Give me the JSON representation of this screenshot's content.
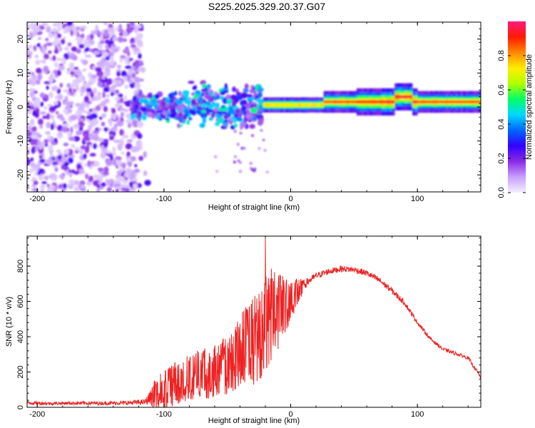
{
  "title": "S225.2025.329.20.37.G07",
  "chart_data": [
    {
      "type": "heatmap",
      "xlabel": "Height of straight line (km)",
      "ylabel": "Frequency (Hz)",
      "xlim": [
        -208,
        150
      ],
      "ylim": [
        -25,
        25
      ],
      "xticks": [
        -200,
        -100,
        0,
        100
      ],
      "xtick_labels": [
        "-200",
        "-100",
        "0",
        "100"
      ],
      "yticks": [
        -20,
        -10,
        0,
        10,
        20
      ],
      "ytick_labels": [
        "-20",
        "-10",
        "0",
        "10",
        "20"
      ],
      "colorbar": {
        "label": "Normalized spectral amplitude",
        "range": [
          0,
          1
        ],
        "ticks": [
          0.0,
          0.2,
          0.4,
          0.6,
          0.8
        ],
        "tick_labels": [
          "0.0",
          "0.2",
          "0.4",
          "0.6",
          "0.8"
        ],
        "colors": [
          "#f5f0ff",
          "#c8a0ff",
          "#8a2be2",
          "#3300ff",
          "#0066ff",
          "#00d8ff",
          "#00ff66",
          "#b0ff00",
          "#ffee00",
          "#ff8800",
          "#ff1a00",
          "#ff1a80"
        ]
      },
      "features": [
        {
          "region": "noise",
          "x_range": [
            -208,
            -118
          ],
          "freq_range": [
            -25,
            25
          ],
          "amplitude": "0.05-0.2 scattered"
        },
        {
          "region": "turbulent",
          "x_range": [
            -125,
            -25
          ],
          "freq_range": [
            -8,
            9
          ],
          "amplitude": "0.1-0.5 patchy"
        },
        {
          "region": "transition",
          "x_range": [
            -25,
            25
          ],
          "freq_center": 0.5,
          "amplitude": "0.3-0.8"
        },
        {
          "region": "stable_tone",
          "x_range": [
            25,
            150
          ],
          "freq_center": 1.5,
          "amplitude": "0.7-1.0",
          "step": {
            "x_range": [
              82,
              95
            ],
            "freq_center": 3.0
          }
        }
      ]
    },
    {
      "type": "line",
      "xlabel": "Height of straight line (km)",
      "ylabel": "SNR (10 * v/v)",
      "xlim": [
        -208,
        150
      ],
      "ylim": [
        0,
        970
      ],
      "xticks": [
        -200,
        -100,
        0,
        100
      ],
      "xtick_labels": [
        "-200",
        "-100",
        "0",
        "100"
      ],
      "yticks": [
        0,
        200,
        400,
        600,
        800
      ],
      "ytick_labels": [
        "0",
        "200",
        "400",
        "600",
        "800"
      ],
      "color": "#ee2222",
      "series": [
        {
          "name": "SNR",
          "x": [
            -208,
            -190,
            -170,
            -150,
            -130,
            -115,
            -110,
            -100,
            -90,
            -80,
            -70,
            -60,
            -50,
            -45,
            -40,
            -35,
            -30,
            -25,
            -22,
            -20,
            -18,
            -15,
            -10,
            -5,
            0,
            5,
            10,
            15,
            20,
            30,
            40,
            50,
            60,
            70,
            80,
            90,
            100,
            110,
            120,
            130,
            140,
            150
          ],
          "y": [
            25,
            22,
            24,
            23,
            25,
            30,
            60,
            100,
            140,
            170,
            190,
            200,
            240,
            260,
            300,
            340,
            380,
            420,
            460,
            480,
            500,
            520,
            550,
            580,
            610,
            650,
            690,
            720,
            745,
            770,
            785,
            780,
            760,
            720,
            660,
            590,
            480,
            390,
            330,
            305,
            280,
            170
          ],
          "noise_amp": [
            10,
            9,
            10,
            10,
            12,
            15,
            45,
            70,
            80,
            80,
            90,
            95,
            110,
            120,
            140,
            150,
            160,
            170,
            190,
            200,
            190,
            170,
            140,
            110,
            80,
            50,
            30,
            20,
            18,
            18,
            18,
            18,
            18,
            18,
            18,
            15,
            12,
            10,
            10,
            10,
            10,
            10
          ],
          "spike": {
            "x": -20,
            "y": 965
          }
        }
      ]
    }
  ]
}
